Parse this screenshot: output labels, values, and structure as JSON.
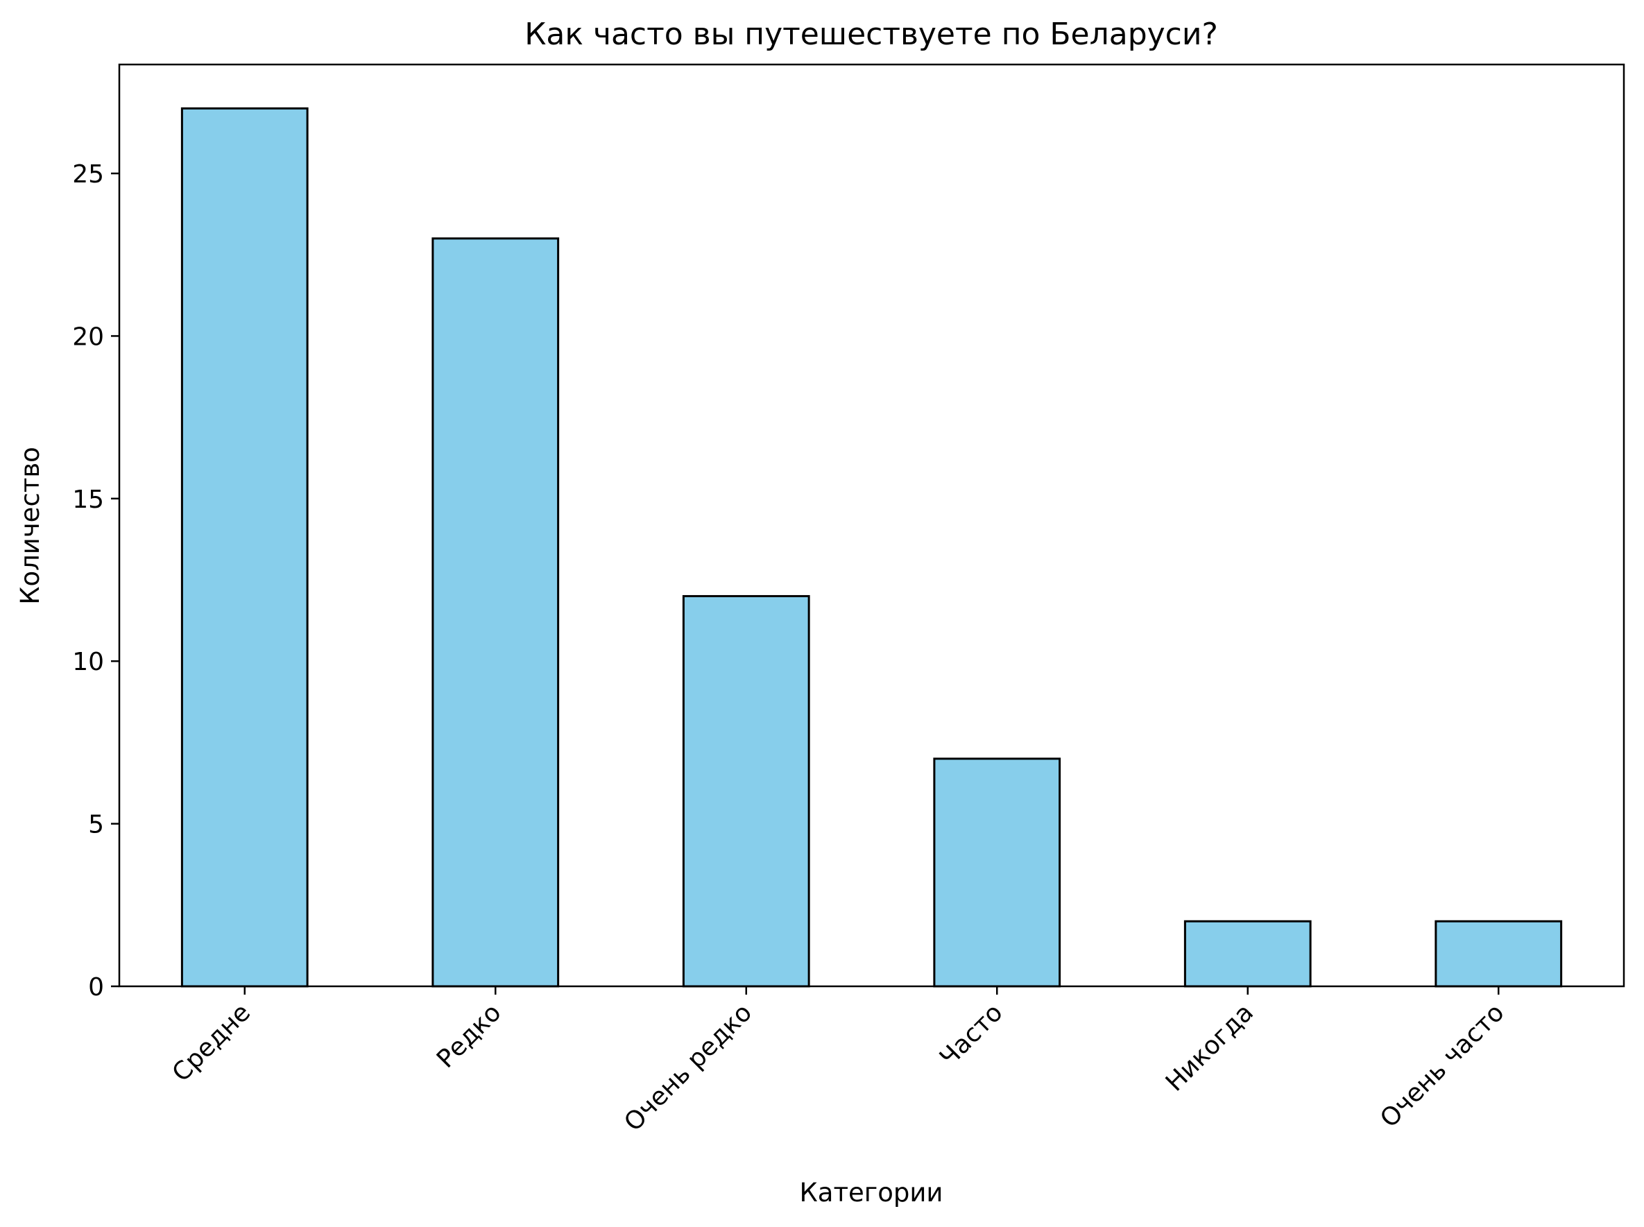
{
  "chart_data": {
    "type": "bar",
    "title": "Как часто вы путешествуете по Беларуси?",
    "xlabel": "Категории",
    "ylabel": "Количество",
    "categories": [
      "Средне",
      "Редко",
      "Очень редко",
      "Часто",
      "Никогда",
      "Очень часто"
    ],
    "values": [
      27,
      23,
      12,
      7,
      2,
      2
    ],
    "ylim": [
      0,
      28.35
    ],
    "yticks": [
      0,
      5,
      10,
      15,
      20,
      25
    ],
    "bar_color": "#87CEEB",
    "edge_color": "#000000",
    "grid": false,
    "legend": "none",
    "xtick_rotation": 45
  }
}
